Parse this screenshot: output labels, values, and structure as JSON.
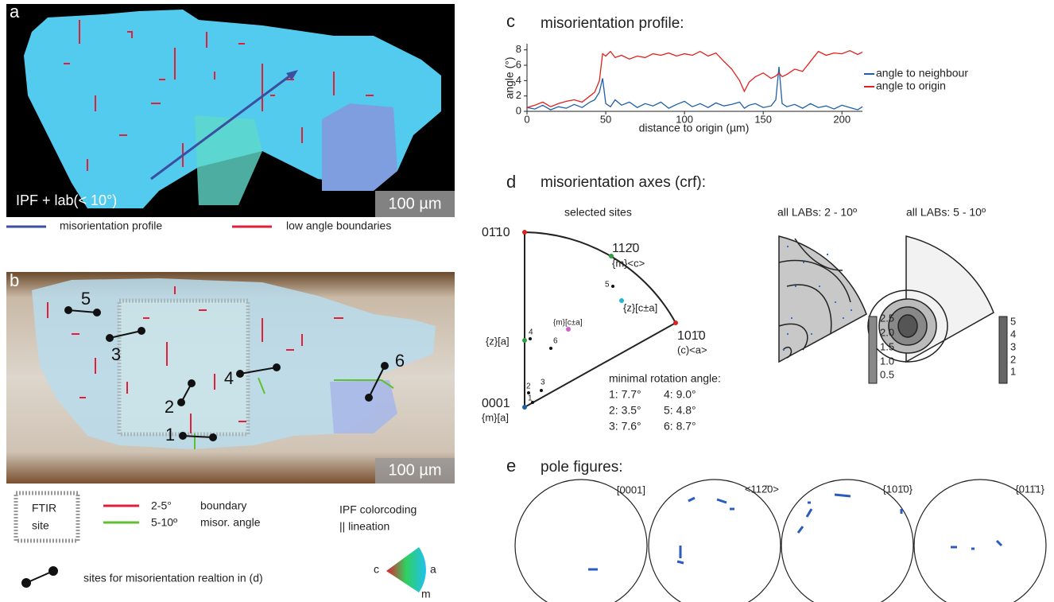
{
  "panel_a": {
    "label": "a",
    "caption": "IPF + lab(< 10°)",
    "scale": "100 µm",
    "legend": [
      "misorientation profile",
      "low angle boundaries"
    ]
  },
  "panel_b": {
    "label": "b",
    "scale": "100 µm",
    "sites": [
      "1",
      "2",
      "3",
      "4",
      "5",
      "6"
    ],
    "ftir": [
      "FTIR",
      "site"
    ],
    "ranges": [
      "2-5°",
      "5-10º"
    ],
    "meaning": [
      "boundary",
      "misor. angle"
    ],
    "ipf": [
      "IPF colorcoding",
      "|| lineation"
    ],
    "ipf_key": [
      "c",
      "a",
      "m"
    ],
    "sites_note": "sites for misorientation realtion in (d)"
  },
  "chart_data": {
    "type": "line",
    "panel_label": "c",
    "title": "misorientation profile:",
    "x_label": "distance to origin (µm)",
    "y_label": "angle (°)",
    "xlim": [
      0,
      213
    ],
    "ylim": [
      0,
      8.8
    ],
    "xticks": [
      0,
      50,
      100,
      150,
      200
    ],
    "yticks": [
      0,
      2,
      4,
      6,
      8
    ],
    "x": [
      0,
      5,
      10,
      15,
      20,
      25,
      30,
      35,
      40,
      43,
      46,
      48,
      50,
      53,
      56,
      60,
      65,
      70,
      75,
      80,
      85,
      90,
      95,
      100,
      105,
      110,
      115,
      120,
      125,
      130,
      135,
      138,
      141,
      145,
      150,
      155,
      158,
      160,
      162,
      165,
      170,
      175,
      180,
      185,
      190,
      195,
      200,
      205,
      210,
      213
    ],
    "series": [
      {
        "name": "angle to neighbour",
        "color": "#1f5fa8",
        "values": [
          0.5,
          0.3,
          0.8,
          0.2,
          0.6,
          0.4,
          0.9,
          0.5,
          1.2,
          1.5,
          2.5,
          4.3,
          1.0,
          0.6,
          1.5,
          0.8,
          1.2,
          0.5,
          1.0,
          0.7,
          1.2,
          0.4,
          0.9,
          1.3,
          0.6,
          1.0,
          0.5,
          1.1,
          0.7,
          0.9,
          1.2,
          0.4,
          0.8,
          1.0,
          0.5,
          0.7,
          1.5,
          5.8,
          1.0,
          0.6,
          0.9,
          0.4,
          1.0,
          0.5,
          0.7,
          0.3,
          0.8,
          0.5,
          0.2,
          0.6
        ]
      },
      {
        "name": "angle to origin",
        "color": "#e0201c",
        "values": [
          0.5,
          0.8,
          1.2,
          0.6,
          1.0,
          1.3,
          1.5,
          1.2,
          2.0,
          2.5,
          4.0,
          7.5,
          7.2,
          7.8,
          7.0,
          7.3,
          6.8,
          7.2,
          7.0,
          7.5,
          7.3,
          7.6,
          7.2,
          7.5,
          7.3,
          7.8,
          7.2,
          7.6,
          6.5,
          5.5,
          4.0,
          2.6,
          3.8,
          4.5,
          5.0,
          4.3,
          4.6,
          5.0,
          4.5,
          4.8,
          5.5,
          5.2,
          6.5,
          7.8,
          7.3,
          7.6,
          7.5,
          7.9,
          7.4,
          7.7
        ]
      }
    ]
  },
  "panel_d": {
    "label": "d",
    "title": "misorientation axes (crf):",
    "subtitles": [
      "selected sites",
      "all LABs: 2 - 10º",
      "all LABs: 5 - 10º"
    ],
    "triangle_labels": [
      "01̄10",
      "112̄0",
      "{m}<c>",
      "{z}[c±a]",
      "101̄0",
      "(c)<a>",
      "{m}[c±a]",
      "{z}[a]",
      "0001",
      "{m}[a]"
    ],
    "site_numbers": [
      "1",
      "2",
      "3",
      "4",
      "5",
      "6"
    ],
    "rotation_title": "minimal rotation angle:",
    "rotation_angles": [
      "1: 7.7°",
      "2: 3.5°",
      "3: 7.6°",
      "4: 9.0°",
      "5: 4.8°",
      "6: 8.7°"
    ],
    "colorbars": [
      [
        "2.5",
        "2.0",
        "1.5",
        "1.0",
        "0.5"
      ],
      [
        "5",
        "4",
        "3",
        "2",
        "1"
      ]
    ]
  },
  "panel_e": {
    "label": "e",
    "title": "pole figures:",
    "figures": [
      "[0001]",
      "<112̄0>",
      "{101̄0}",
      "{011̄1}"
    ]
  }
}
